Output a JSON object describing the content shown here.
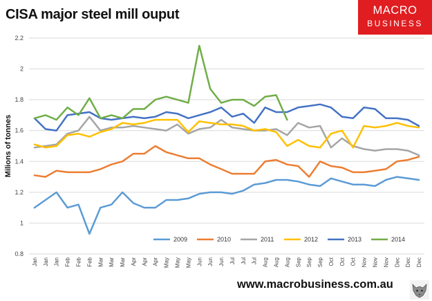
{
  "header": {
    "title": "CISA major steel mill ouput",
    "brand_line1": "MACRO",
    "brand_line2": "BUSINESS",
    "brand_color": "#e01d20"
  },
  "footer": {
    "url": "www.macrobusiness.com.au",
    "logo_icon": "wolf-icon"
  },
  "chart_data": {
    "type": "line",
    "title": "CISA major steel mill ouput",
    "xlabel": "",
    "ylabel": "Milions of tonnes",
    "ylim": [
      0.8,
      2.2
    ],
    "yticks": [
      0.8,
      1,
      1.2,
      1.4,
      1.6,
      1.8,
      2,
      2.2
    ],
    "ytick_labels": [
      "0.8",
      "1",
      "1.2",
      "1.4",
      "1.6",
      "1.8",
      "2",
      "2.2"
    ],
    "grid": true,
    "legend_position": "bottom-inside",
    "categories": [
      "Jan",
      "Jan",
      "Jan",
      "Feb",
      "Feb",
      "Feb",
      "Mar",
      "Mar",
      "Mar",
      "Apr",
      "Apr",
      "Apr",
      "May",
      "May",
      "May",
      "Jun",
      "Jun",
      "Jun",
      "Jul",
      "Jul",
      "Jul",
      "Aug",
      "Aug",
      "Aug",
      "Sep",
      "Sep",
      "Sep",
      "Oct",
      "Oct",
      "Oct",
      "Nov",
      "Nov",
      "Nov",
      "Dec",
      "Dec",
      "Dec"
    ],
    "series": [
      {
        "name": "2009",
        "color": "#5b9bd5",
        "values": [
          1.1,
          1.15,
          1.2,
          1.1,
          1.12,
          0.93,
          1.1,
          1.12,
          1.2,
          1.13,
          1.1,
          1.1,
          1.15,
          1.15,
          1.16,
          1.19,
          1.2,
          1.2,
          1.19,
          1.21,
          1.25,
          1.26,
          1.28,
          1.28,
          1.27,
          1.25,
          1.24,
          1.29,
          1.27,
          1.25,
          1.25,
          1.24,
          1.28,
          1.3,
          1.29,
          1.28
        ]
      },
      {
        "name": "2010",
        "color": "#ed7d31",
        "values": [
          1.31,
          1.3,
          1.34,
          1.33,
          1.33,
          1.33,
          1.35,
          1.38,
          1.4,
          1.45,
          1.45,
          1.5,
          1.46,
          1.44,
          1.42,
          1.42,
          1.38,
          1.35,
          1.32,
          1.32,
          1.32,
          1.4,
          1.41,
          1.38,
          1.37,
          1.3,
          1.4,
          1.37,
          1.36,
          1.33,
          1.33,
          1.34,
          1.35,
          1.4,
          1.41,
          1.43
        ]
      },
      {
        "name": "2011",
        "color": "#a5a5a5",
        "values": [
          1.49,
          1.5,
          1.51,
          1.58,
          1.6,
          1.69,
          1.6,
          1.62,
          1.62,
          1.63,
          1.62,
          1.61,
          1.6,
          1.64,
          1.58,
          1.61,
          1.62,
          1.67,
          1.62,
          1.61,
          1.6,
          1.6,
          1.61,
          1.57,
          1.65,
          1.62,
          1.63,
          1.49,
          1.55,
          1.5,
          1.48,
          1.47,
          1.48,
          1.48,
          1.47,
          1.44
        ]
      },
      {
        "name": "2012",
        "color": "#ffc000",
        "values": [
          1.51,
          1.49,
          1.5,
          1.57,
          1.58,
          1.56,
          1.59,
          1.61,
          1.65,
          1.64,
          1.65,
          1.67,
          1.67,
          1.67,
          1.59,
          1.66,
          1.65,
          1.64,
          1.64,
          1.63,
          1.6,
          1.61,
          1.59,
          1.5,
          1.54,
          1.5,
          1.49,
          1.58,
          1.6,
          1.49,
          1.63,
          1.62,
          1.63,
          1.65,
          1.63,
          1.62
        ]
      },
      {
        "name": "2013",
        "color": "#4472c4",
        "values": [
          1.68,
          1.61,
          1.6,
          1.7,
          1.71,
          1.72,
          1.68,
          1.67,
          1.68,
          1.69,
          1.68,
          1.69,
          1.72,
          1.71,
          1.68,
          1.7,
          1.72,
          1.75,
          1.69,
          1.71,
          1.65,
          1.75,
          1.72,
          1.72,
          1.75,
          1.76,
          1.77,
          1.75,
          1.69,
          1.68,
          1.75,
          1.74,
          1.68,
          1.68,
          1.67,
          1.63
        ]
      },
      {
        "name": "2014",
        "color": "#70ad47",
        "values": [
          1.68,
          1.7,
          1.67,
          1.75,
          1.7,
          1.81,
          1.68,
          1.7,
          1.68,
          1.74,
          1.74,
          1.8,
          1.82,
          1.8,
          1.78,
          2.15,
          1.87,
          1.78,
          1.8,
          1.8,
          1.76,
          1.82,
          1.83,
          1.67,
          null,
          null,
          null,
          null,
          null,
          null,
          null,
          null,
          null,
          null,
          null,
          null
        ]
      }
    ]
  }
}
